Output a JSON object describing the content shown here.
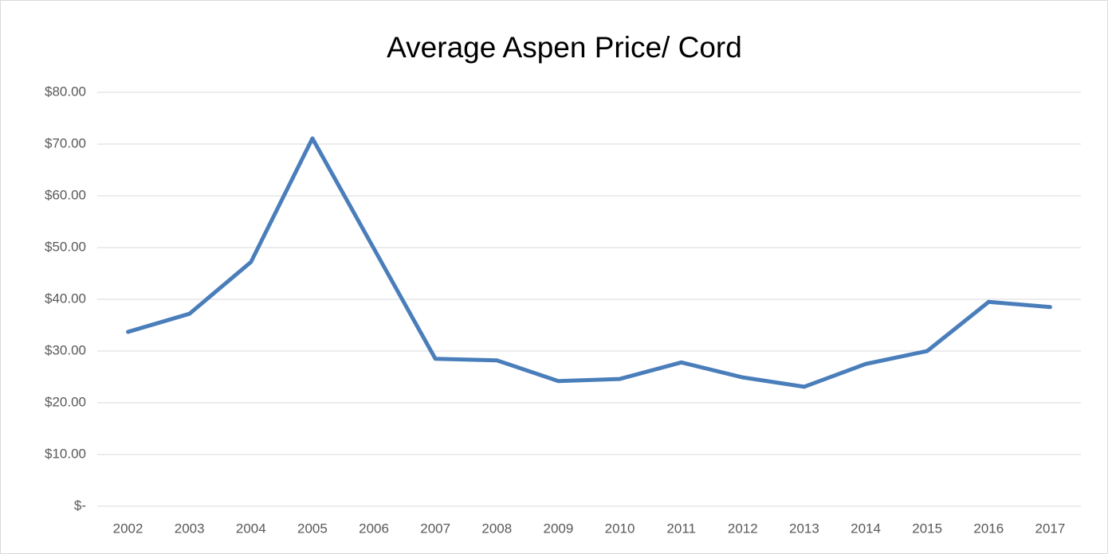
{
  "chart_data": {
    "type": "line",
    "title": "Average Aspen Price/ Cord",
    "categories": [
      "2002",
      "2003",
      "2004",
      "2005",
      "2006",
      "2007",
      "2008",
      "2009",
      "2010",
      "2011",
      "2012",
      "2013",
      "2014",
      "2015",
      "2016",
      "2017"
    ],
    "series": [
      {
        "name": "Average Aspen Price/ Cord",
        "color": "#4a7ebb",
        "values": [
          33.7,
          37.2,
          47.2,
          71.1,
          49.8,
          28.5,
          28.2,
          24.2,
          24.6,
          27.8,
          24.9,
          23.1,
          27.5,
          30.0,
          39.5,
          38.5
        ]
      }
    ],
    "ylim": [
      0,
      80
    ],
    "yticks": [
      {
        "value": 0,
        "label": "$-"
      },
      {
        "value": 10,
        "label": "$10.00"
      },
      {
        "value": 20,
        "label": "$20.00"
      },
      {
        "value": 30,
        "label": "$30.00"
      },
      {
        "value": 40,
        "label": "$40.00"
      },
      {
        "value": 50,
        "label": "$50.00"
      },
      {
        "value": 60,
        "label": "$60.00"
      },
      {
        "value": 70,
        "label": "$70.00"
      },
      {
        "value": 80,
        "label": "$80.00"
      }
    ],
    "grid": true
  }
}
